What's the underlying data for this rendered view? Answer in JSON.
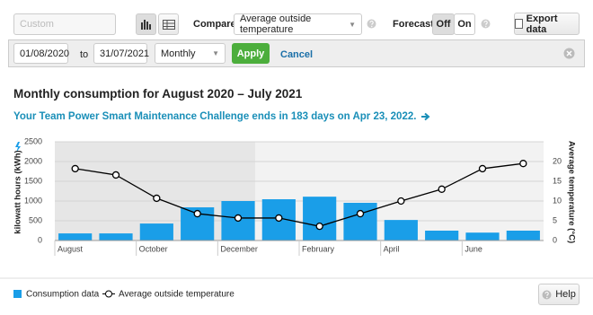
{
  "toolbar": {
    "range_select": "Custom",
    "compare_label": "Compare",
    "compare_select": "Average outside temperature",
    "forecast_label": "Forecast",
    "forecast_off": "Off",
    "forecast_on": "On",
    "export": "Export data"
  },
  "filter": {
    "from": "01/08/2020",
    "to_label": "to",
    "to": "31/07/2021",
    "period": "Monthly",
    "apply": "Apply",
    "cancel": "Cancel"
  },
  "heading": "Monthly consumption for August 2020 – July 2021",
  "banner": "Your Team Power Smart Maintenance Challenge ends in 183 days on Apr 23, 2022.",
  "chart_data": {
    "type": "bar",
    "ylabel": "kilowatt hours (kWh)",
    "y2label": "Average temperature (°C)",
    "categories": [
      "August",
      null,
      "October",
      null,
      "December",
      null,
      "February",
      null,
      "April",
      null,
      "June",
      null
    ],
    "series": [
      {
        "name": "Consumption data",
        "color": "#1a9ee8",
        "values": [
          180,
          180,
          430,
          840,
          1000,
          1045,
          1110,
          955,
          520,
          250,
          200,
          250
        ]
      },
      {
        "name": "Average outside temperature",
        "type": "line",
        "axis": "y2",
        "color": "#000000",
        "values": [
          18.2,
          16.6,
          10.7,
          6.8,
          5.7,
          5.7,
          3.6,
          6.8,
          10.0,
          13.0,
          18.2,
          19.5
        ]
      }
    ],
    "ylim": [
      0,
      2500
    ],
    "yticks": [
      0,
      500,
      1000,
      1500,
      2000,
      2500
    ],
    "y2lim": [
      0,
      25
    ],
    "y2ticks": [
      0,
      5,
      10,
      15,
      20
    ],
    "grid": true
  },
  "help": "Help"
}
